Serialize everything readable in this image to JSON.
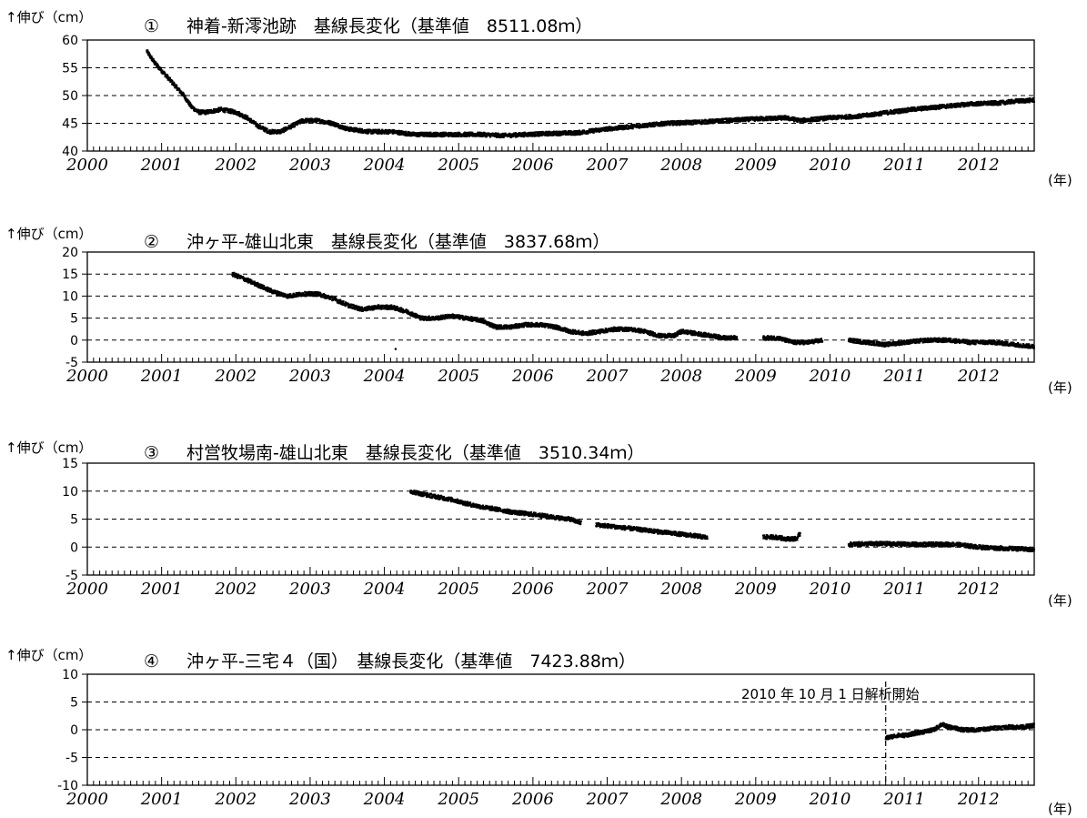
{
  "x_axis": {
    "range": [
      2000,
      2012.75
    ],
    "tick_labels": [
      "2000",
      "2001",
      "2002",
      "2003",
      "2004",
      "2005",
      "2006",
      "2007",
      "2008",
      "2009",
      "2010",
      "2011",
      "2012"
    ],
    "unit_label": "(年)",
    "minor_ticks": "monthly"
  },
  "colors": {
    "points": "#000000",
    "grid": "#000000",
    "frame": "#000000",
    "background": "#ffffff"
  },
  "chart_data": [
    {
      "type": "scatter",
      "number": "①",
      "title": "神着-新澪池跡　基線長変化（基準値　8511.08ｍ）",
      "ylabel": "↑伸び（cm）",
      "xlabel": "(年)",
      "xlim": [
        2000,
        2012.75
      ],
      "ylim": [
        40,
        60
      ],
      "yticks": [
        40,
        45,
        50,
        55,
        60
      ],
      "grid": "dashed horizontal",
      "gaps": [
        [
          2009.42,
          2009.55
        ],
        [
          2011.0,
          2011.05
        ],
        [
          2012.38,
          2012.45
        ]
      ],
      "series": [
        {
          "x": [
            2000.8,
            2000.9,
            2001.0,
            2001.1,
            2001.2,
            2001.3,
            2001.4,
            2001.5,
            2001.6,
            2001.8,
            2002.0,
            2002.15,
            2002.3,
            2002.45,
            2002.6,
            2002.75,
            2002.9,
            2003.1,
            2003.3,
            2003.5,
            2003.8,
            2004.1,
            2004.4,
            2004.7,
            2005.0,
            2005.3,
            2005.6,
            2005.9,
            2006.3,
            2006.6,
            2007.0,
            2007.4,
            2007.8,
            2008.2,
            2008.6,
            2009.0,
            2009.4,
            2009.6,
            2010.0,
            2010.4,
            2010.8,
            2011.1,
            2011.5,
            2011.9,
            2012.3,
            2012.5,
            2012.75
          ],
          "y": [
            58,
            56,
            54.5,
            53,
            51.5,
            50,
            48,
            47,
            47,
            47.5,
            47,
            46,
            44.5,
            43.5,
            43.5,
            44.5,
            45.5,
            45.5,
            45,
            44,
            43.5,
            43.5,
            43,
            43,
            43,
            43,
            42.8,
            43,
            43.2,
            43.3,
            44,
            44.5,
            45,
            45.2,
            45.5,
            45.8,
            46,
            45.5,
            46,
            46.3,
            47,
            47.5,
            48,
            48.5,
            48.7,
            49,
            49.2
          ]
        }
      ]
    },
    {
      "type": "scatter",
      "number": "②",
      "title": "沖ヶ平-雄山北東　基線長変化（基準値　3837.68ｍ）",
      "ylabel": "↑伸び（cm）",
      "xlabel": "(年)",
      "xlim": [
        2000,
        2012.75
      ],
      "ylim": [
        -5,
        20
      ],
      "yticks": [
        -5,
        0,
        5,
        10,
        15,
        20
      ],
      "grid": "dashed horizontal",
      "gaps": [
        [
          2008.75,
          2009.1
        ],
        [
          2009.9,
          2010.25
        ]
      ],
      "series": [
        {
          "x": [
            2001.95,
            2002.1,
            2002.3,
            2002.5,
            2002.7,
            2002.9,
            2003.1,
            2003.3,
            2003.5,
            2003.7,
            2003.9,
            2004.1,
            2004.3,
            2004.5,
            2004.7,
            2004.9,
            2005.1,
            2005.3,
            2005.5,
            2005.7,
            2005.9,
            2006.1,
            2006.3,
            2006.5,
            2006.7,
            2006.9,
            2007.1,
            2007.3,
            2007.5,
            2007.7,
            2007.9,
            2008.0,
            2008.2,
            2008.4,
            2008.6,
            2008.75,
            2009.1,
            2009.3,
            2009.5,
            2009.7,
            2009.9,
            2010.25,
            2010.5,
            2010.75,
            2011.0,
            2011.3,
            2011.6,
            2011.9,
            2012.2,
            2012.5,
            2012.75
          ],
          "y": [
            15,
            14,
            12.5,
            11,
            10,
            10.5,
            10.5,
            9.5,
            8,
            7,
            7.5,
            7.5,
            6.5,
            5,
            5,
            5.5,
            5,
            4.5,
            3,
            3,
            3.5,
            3.5,
            3,
            2,
            1.5,
            2,
            2.5,
            2.5,
            2,
            1,
            1,
            2,
            1.5,
            1,
            0.5,
            0.5,
            0.5,
            0.5,
            -0.5,
            -0.5,
            0,
            0,
            -0.5,
            -1,
            -0.5,
            0,
            0,
            -0.5,
            -0.5,
            -1,
            -1.5
          ]
        }
      ],
      "outliers": [
        {
          "x": 2004.15,
          "y": -2
        }
      ]
    },
    {
      "type": "scatter",
      "number": "③",
      "title": "村営牧場南-雄山北東　基線長変化（基準値　3510.34ｍ）",
      "ylabel": "↑伸び（cm）",
      "xlabel": "(年)",
      "xlim": [
        2000,
        2012.75
      ],
      "ylim": [
        -5,
        15
      ],
      "yticks": [
        -5,
        0,
        5,
        10,
        15
      ],
      "grid": "dashed horizontal",
      "gaps": [
        [
          2006.65,
          2006.85
        ],
        [
          2008.35,
          2009.1
        ],
        [
          2009.6,
          2010.25
        ]
      ],
      "series": [
        {
          "x": [
            2004.35,
            2004.5,
            2004.7,
            2004.9,
            2005.1,
            2005.3,
            2005.5,
            2005.7,
            2005.9,
            2006.1,
            2006.3,
            2006.5,
            2006.65,
            2006.85,
            2007.0,
            2007.2,
            2007.4,
            2007.6,
            2007.8,
            2008.0,
            2008.2,
            2008.35,
            2009.1,
            2009.25,
            2009.4,
            2009.55,
            2009.6,
            2010.25,
            2010.5,
            2010.8,
            2011.1,
            2011.4,
            2011.7,
            2012.0,
            2012.3,
            2012.55,
            2012.75
          ],
          "y": [
            10,
            9.5,
            9,
            8.5,
            7.8,
            7.2,
            6.8,
            6.3,
            6,
            5.7,
            5.3,
            5,
            4.3,
            4,
            3.8,
            3.5,
            3.2,
            2.9,
            2.6,
            2.3,
            2,
            1.7,
            1.8,
            1.8,
            1.5,
            1.5,
            2.5,
            0.5,
            0.6,
            0.6,
            0.5,
            0.5,
            0.5,
            0,
            -0.2,
            -0.3,
            -0.5
          ]
        }
      ]
    },
    {
      "type": "scatter",
      "number": "④",
      "title": "沖ヶ平-三宅４（国）　基線長変化（基準値　7423.88ｍ）",
      "ylabel": "↑伸び（cm）",
      "xlabel": "(年)",
      "xlim": [
        2000,
        2012.75
      ],
      "ylim": [
        -10,
        10
      ],
      "yticks": [
        -10,
        -5,
        0,
        5,
        10
      ],
      "grid": "dashed horizontal",
      "annotation": {
        "text": "2010 年 10 月 1 日解析開始",
        "x": 2010.75
      },
      "series": [
        {
          "x": [
            2010.75,
            2010.9,
            2011.0,
            2011.2,
            2011.4,
            2011.5,
            2011.6,
            2011.8,
            2012.0,
            2012.2,
            2012.4,
            2012.6,
            2012.75
          ],
          "y": [
            -1.5,
            -1,
            -1,
            -0.5,
            0,
            1,
            0.5,
            0,
            0,
            0.3,
            0.5,
            0.5,
            0.8
          ]
        }
      ]
    }
  ]
}
